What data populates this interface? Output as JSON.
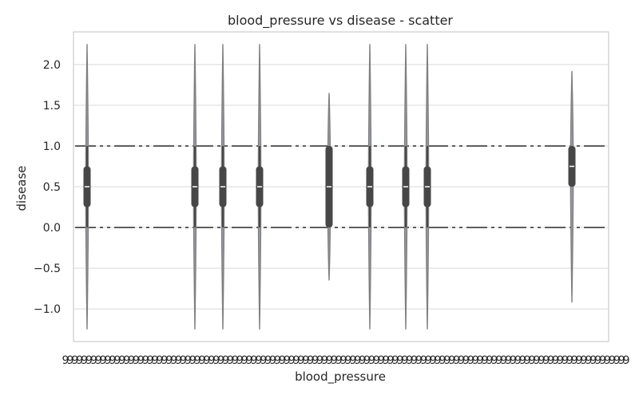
{
  "chart_data": {
    "type": "violin",
    "title": "blood_pressure vs disease - scatter",
    "xlabel": "blood_pressure",
    "ylabel": "disease",
    "ylim": [
      -1.4,
      2.4
    ],
    "y_ticks": [
      "2.0",
      "1.5",
      "1.0",
      "0.5",
      "0.0",
      "−0.5",
      "−1.0"
    ],
    "y_tick_values": [
      2.0,
      1.5,
      1.0,
      0.5,
      0.0,
      -0.5,
      -1.0
    ],
    "grid": true,
    "x_tick_labels_overlapping": true,
    "violins": [
      {
        "group": 1,
        "min": -1.25,
        "max": 2.25,
        "q1": 0.25,
        "median": 0.5,
        "q3": 0.75,
        "whisker_low": 0.0,
        "whisker_high": 1.0
      },
      {
        "group": 2,
        "min": -1.25,
        "max": 2.25,
        "q1": 0.25,
        "median": 0.5,
        "q3": 0.75,
        "whisker_low": 0.0,
        "whisker_high": 1.0
      },
      {
        "group": 3,
        "min": -1.25,
        "max": 2.25,
        "q1": 0.25,
        "median": 0.5,
        "q3": 0.75,
        "whisker_low": 0.0,
        "whisker_high": 1.0
      },
      {
        "group": 4,
        "min": -1.25,
        "max": 2.25,
        "q1": 0.25,
        "median": 0.5,
        "q3": 0.75,
        "whisker_low": 0.0,
        "whisker_high": 1.0
      },
      {
        "group": 5,
        "min": -0.65,
        "max": 1.65,
        "q1": 0.0,
        "median": 0.5,
        "q3": 1.0,
        "whisker_low": 0.0,
        "whisker_high": 1.0
      },
      {
        "group": 6,
        "min": -1.25,
        "max": 2.25,
        "q1": 0.25,
        "median": 0.5,
        "q3": 0.75,
        "whisker_low": 0.0,
        "whisker_high": 1.0
      },
      {
        "group": 7,
        "min": -1.25,
        "max": 2.25,
        "q1": 0.25,
        "median": 0.5,
        "q3": 0.75,
        "whisker_low": 0.0,
        "whisker_high": 1.0
      },
      {
        "group": 8,
        "min": -1.25,
        "max": 2.25,
        "q1": 0.25,
        "median": 0.5,
        "q3": 0.75,
        "whisker_low": 0.0,
        "whisker_high": 1.0
      },
      {
        "group": 9,
        "min": -0.92,
        "max": 1.92,
        "q1": 0.5,
        "median": 0.75,
        "q3": 1.0,
        "whisker_low": 0.5,
        "whisker_high": 1.0
      }
    ],
    "reference_lines_y": [
      1.0,
      0.0
    ],
    "colors": {
      "axes_border": "#cccccc",
      "grid": "#d9d9d9",
      "violin_line": "#7f7f7f",
      "box": "#474747",
      "median": "#ffffff",
      "dashed": "#3a3a3a",
      "text": "#262626"
    }
  }
}
